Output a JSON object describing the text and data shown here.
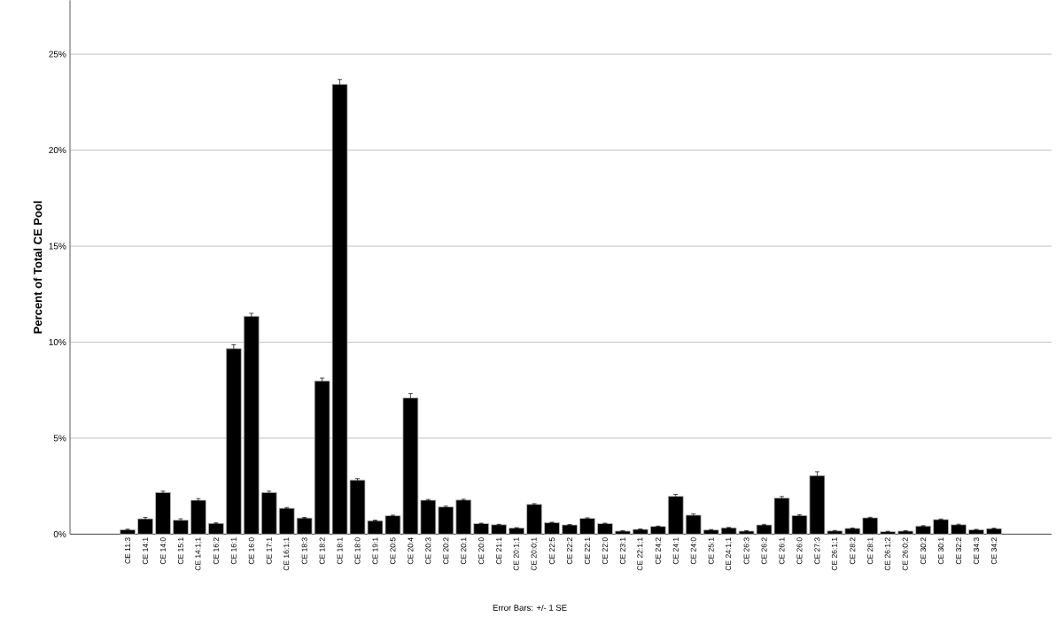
{
  "chart_data": {
    "type": "bar",
    "ylabel": "Percent of Total CE Pool",
    "annotations": [
      "Error Bars: +/- 1 SE"
    ],
    "categories": [
      "CE 11:3",
      "CE 14:1",
      "CE 14:0",
      "CE 15:1",
      "CE 14:1;1",
      "CE 16:2",
      "CE 16:1",
      "CE 16:0",
      "CE 17:1",
      "CE 16:1;1",
      "CE 18:3",
      "CE 18:2",
      "CE 18:1",
      "CE 18:0",
      "CE 19:1",
      "CE 20:5",
      "CE 20:4",
      "CE 20:3",
      "CE 20:2",
      "CE 20:1",
      "CE 20:0",
      "CE 21:1",
      "CE 20:1;1",
      "CE 20:0;1",
      "CE 22:5",
      "CE 22:2",
      "CE 22:1",
      "CE 22:0",
      "CE 23:1",
      "CE 22:1;1",
      "CE 24:2",
      "CE 24:1",
      "CE 24:0",
      "CE 25:1",
      "CE 24:1;1",
      "CE 26:3",
      "CE 26:2",
      "CE 26:1",
      "CE 26:0",
      "CE 27:3",
      "CE 26:1;1",
      "CE 28:2",
      "CE 28:1",
      "CE 26:1;2",
      "CE 26:0;2",
      "CE 30:2",
      "CE 30:1",
      "CE 32:2",
      "CE 34:3",
      "CE 34:2"
    ],
    "values": [
      0.23,
      0.8,
      2.17,
      0.73,
      1.77,
      0.56,
      9.66,
      11.35,
      2.17,
      1.35,
      0.84,
      7.98,
      23.43,
      2.82,
      0.7,
      0.96,
      7.1,
      1.77,
      1.42,
      1.78,
      0.55,
      0.49,
      0.32,
      1.55,
      0.6,
      0.48,
      0.82,
      0.55,
      0.16,
      0.25,
      0.4,
      1.97,
      0.99,
      0.22,
      0.33,
      0.16,
      0.48,
      1.88,
      0.97,
      3.05,
      0.17,
      0.3,
      0.85,
      0.13,
      0.16,
      0.42,
      0.76,
      0.49,
      0.23,
      0.29
    ],
    "errors": [
      0.03,
      0.07,
      0.07,
      0.07,
      0.08,
      0.03,
      0.2,
      0.15,
      0.07,
      0.04,
      0.03,
      0.15,
      0.25,
      0.07,
      0.03,
      0.03,
      0.22,
      0.04,
      0.04,
      0.04,
      0.02,
      0.02,
      0.02,
      0.04,
      0.02,
      0.02,
      0.03,
      0.02,
      0.02,
      0.02,
      0.02,
      0.1,
      0.07,
      0.02,
      0.02,
      0.02,
      0.03,
      0.08,
      0.04,
      0.2,
      0.02,
      0.02,
      0.03,
      0.02,
      0.02,
      0.02,
      0.03,
      0.03,
      0.02,
      0.02
    ],
    "color": "#000000",
    "ylim": [
      0,
      27.8
    ],
    "yticks": [
      {
        "value": 0,
        "label": "0%"
      },
      {
        "value": 5,
        "label": "5%"
      },
      {
        "value": 10,
        "label": "10%"
      },
      {
        "value": 15,
        "label": "15%"
      },
      {
        "value": 20,
        "label": "20%"
      },
      {
        "value": 25,
        "label": "25%"
      }
    ],
    "grid": "y"
  }
}
